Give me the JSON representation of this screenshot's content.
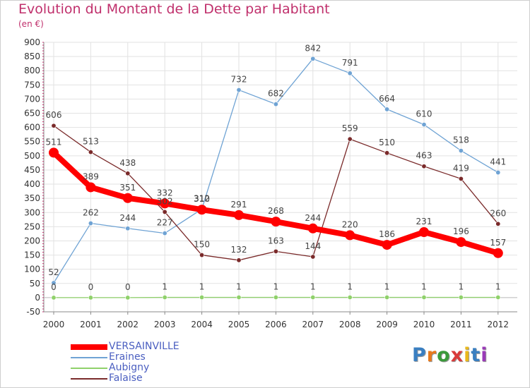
{
  "title": "Evolution du Montant de la Dette par Habitant",
  "unit": "(en €)",
  "logo": {
    "text": "Proxiti",
    "colors": [
      "#3a7fc1",
      "#e8791c",
      "#3a9a3a",
      "#d93a3a",
      "#e8b81c",
      "#3a7fc1",
      "#9a3ab8"
    ]
  },
  "chart_data": {
    "type": "line",
    "x": [
      "2000",
      "2001",
      "2002",
      "2003",
      "2004",
      "2005",
      "2006",
      "2007",
      "2008",
      "2009",
      "2010",
      "2011",
      "2012"
    ],
    "ylim": [
      -50,
      900
    ],
    "yticks": [
      -50,
      0,
      50,
      100,
      150,
      200,
      250,
      300,
      350,
      400,
      450,
      500,
      550,
      600,
      650,
      700,
      750,
      800,
      850,
      900
    ],
    "grid": true,
    "legend_position": "bottom-left",
    "series": [
      {
        "name": "VERSAINVILLE",
        "color": "#ff0000",
        "values": [
          511,
          389,
          351,
          332,
          310,
          291,
          268,
          244,
          220,
          186,
          231,
          196,
          157
        ]
      },
      {
        "name": "Eraines",
        "color": "#6fa3d4",
        "values": [
          52,
          262,
          244,
          227,
          312,
          732,
          682,
          842,
          791,
          664,
          610,
          518,
          441
        ]
      },
      {
        "name": "Aubigny",
        "color": "#8fd16a",
        "values": [
          0,
          0,
          0,
          1,
          1,
          1,
          1,
          1,
          1,
          1,
          1,
          1,
          1
        ]
      },
      {
        "name": "Falaise",
        "color": "#7a2a2a",
        "values": [
          606,
          513,
          438,
          302,
          150,
          132,
          163,
          144,
          559,
          510,
          463,
          419,
          260
        ]
      }
    ]
  }
}
